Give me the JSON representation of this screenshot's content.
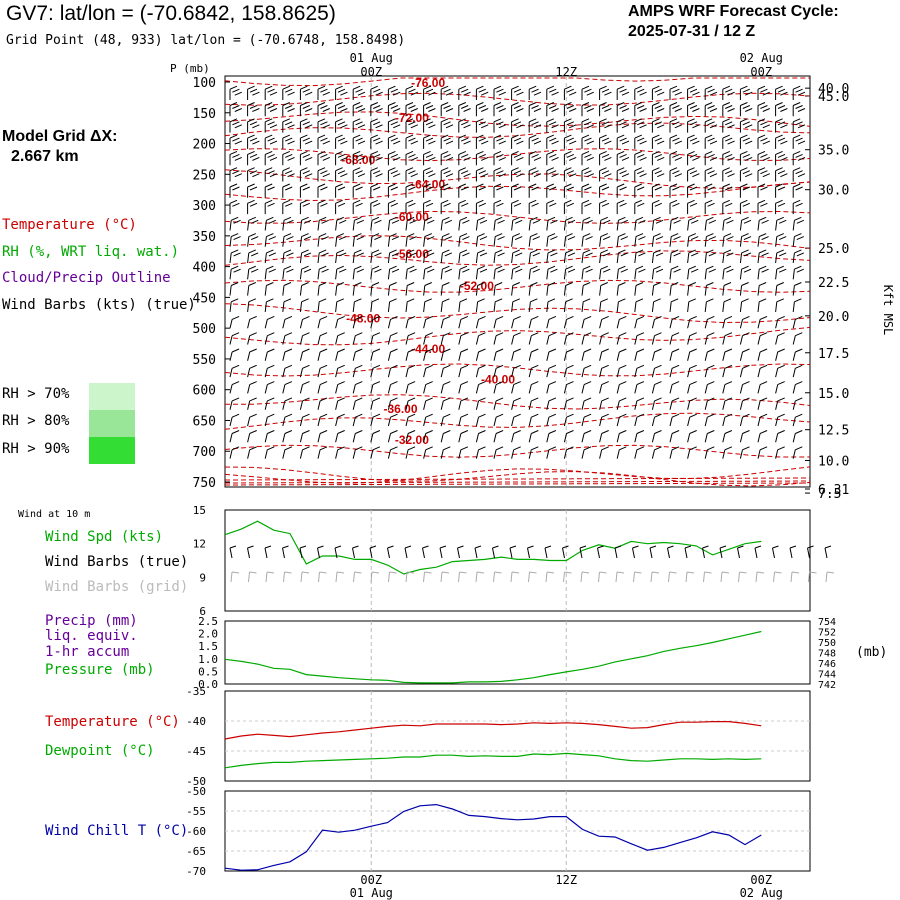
{
  "header": {
    "title": "GV7:  lat/lon = (-70.6842, 158.8625)",
    "grid_point": "Grid Point (48, 933) lat/lon = (-70.6748, 158.8498)",
    "cycle_title": "AMPS WRF Forecast Cycle:",
    "cycle_value": "2025-07-31 / 12  Z",
    "grid_dx_label": "Model Grid ΔX:",
    "grid_dx_value": "2.667 km"
  },
  "colors": {
    "temperature": "#cc0000",
    "rh": "#00aa00",
    "cloud": "#660099",
    "wind": "#000000",
    "wind_grid": "#aaaaaa",
    "precip": "#660099",
    "pressure": "#00aa00",
    "wind_chill": "#0000aa",
    "rh70": "#ccf5cc",
    "rh80": "#99e699",
    "rh90": "#33dd33"
  },
  "legends": {
    "temperature": "Temperature (°C)",
    "rh": "RH (%, WRT liq. wat.)",
    "cloud": "Cloud/Precip Outline",
    "wind": "Wind Barbs (kts) (true)",
    "rh70": "RH > 70%",
    "rh80": "RH > 80%",
    "rh90": "RH > 90%",
    "wind10": "Wind at 10 m",
    "wind_spd": "Wind Spd (kts)",
    "wind_true": "Wind Barbs (true)",
    "wind_grid": "Wind Barbs (grid)",
    "precip1": "Precip (mm)",
    "precip2": "liq. equiv.",
    "precip3": "1-hr accum",
    "pressure": "Pressure (mb)",
    "temp2": "Temperature (°C)",
    "dewpoint": "Dewpoint (°C)",
    "wind_chill": "Wind Chill T (°C)"
  },
  "chart_data": [
    {
      "type": "line",
      "name": "profile",
      "ylabel_left": "P (mb)",
      "ylabel_right": "Kft MSL",
      "p_ticks": [
        100,
        150,
        200,
        250,
        300,
        350,
        400,
        450,
        500,
        550,
        600,
        650,
        700,
        750
      ],
      "kft_ticks": [
        {
          "p": 100,
          "label": "45.0"
        },
        {
          "p": 110,
          "label": "40.0"
        },
        {
          "p": 210,
          "label": "35.0"
        },
        {
          "p": 275,
          "label": "30.0"
        },
        {
          "p": 370,
          "label": "25.0"
        },
        {
          "p": 425,
          "label": "22.5"
        },
        {
          "p": 480,
          "label": "20.0"
        },
        {
          "p": 540,
          "label": "17.5"
        },
        {
          "p": 605,
          "label": "15.0"
        },
        {
          "p": 665,
          "label": "12.5"
        },
        {
          "p": 715,
          "label": "10.0"
        },
        {
          "p": 768,
          "label": "7.5"
        },
        {
          "p": 790,
          "label": "6.31"
        }
      ],
      "top_ticks": [
        {
          "h": 12,
          "l1": "01 Aug",
          "l2": "00Z"
        },
        {
          "h": 24,
          "l1": "",
          "l2": "12Z"
        },
        {
          "h": 36,
          "l1": "02 Aug",
          "l2": "00Z"
        }
      ],
      "temp_labels": [
        {
          "h": 15.5,
          "p": 100,
          "label": "-76.00"
        },
        {
          "h": 14.5,
          "p": 157,
          "label": "-72.00"
        },
        {
          "h": 11.2,
          "p": 225,
          "label": "-68.00"
        },
        {
          "h": 15.5,
          "p": 265,
          "label": "-64.00"
        },
        {
          "h": 14.5,
          "p": 318,
          "label": "-60.00"
        },
        {
          "h": 14.5,
          "p": 378,
          "label": "-56.00"
        },
        {
          "h": 18.5,
          "p": 430,
          "label": "-52.00"
        },
        {
          "h": 11.5,
          "p": 483,
          "label": "-48.00"
        },
        {
          "h": 15.5,
          "p": 532,
          "label": "-44.00"
        },
        {
          "h": 19.8,
          "p": 582,
          "label": "-40.00"
        },
        {
          "h": 13.8,
          "p": 630,
          "label": "-36.00"
        },
        {
          "h": 14.5,
          "p": 680,
          "label": "-32.00"
        }
      ],
      "x_range": [
        3,
        39
      ],
      "y_range": [
        100,
        795
      ]
    },
    {
      "type": "line",
      "name": "wind10",
      "y_ticks": [
        6,
        9,
        12,
        15
      ],
      "ylim": [
        6,
        15
      ],
      "x": [
        3,
        4,
        5,
        6,
        7,
        8,
        9,
        10,
        11,
        12,
        13,
        14,
        15,
        16,
        17,
        18,
        19,
        20,
        21,
        22,
        23,
        24,
        25,
        26,
        27,
        28,
        29,
        30,
        31,
        32,
        33,
        34,
        35,
        36
      ],
      "values": [
        12.8,
        13.3,
        14.0,
        13.2,
        12.9,
        10.2,
        10.9,
        10.9,
        10.6,
        10.6,
        10.1,
        9.3,
        9.7,
        9.9,
        10.4,
        10.5,
        10.6,
        10.8,
        10.6,
        10.6,
        10.5,
        10.5,
        11.4,
        11.9,
        11.6,
        12.2,
        12.0,
        12.1,
        12.0,
        11.8,
        11.0,
        11.5,
        12.0,
        12.2
      ]
    },
    {
      "type": "line",
      "name": "precip_pressure",
      "y_ticks_left": [
        "0.0",
        "0.5",
        "1.0",
        "1.5",
        "2.0",
        "2.5"
      ],
      "y_ticks_right": [
        "742",
        "744",
        "746",
        "748",
        "750",
        "752",
        "754"
      ],
      "unit_right": "(mb)",
      "ylim_right": [
        742,
        754
      ],
      "x": [
        3,
        4,
        5,
        6,
        7,
        8,
        9,
        10,
        11,
        12,
        13,
        14,
        15,
        16,
        17,
        18,
        19,
        20,
        21,
        22,
        23,
        24,
        25,
        26,
        27,
        28,
        29,
        30,
        31,
        32,
        33,
        34,
        35,
        36
      ],
      "values": [
        746.7,
        746.3,
        745.8,
        745.0,
        744.8,
        743.8,
        743.5,
        743.2,
        743.0,
        742.8,
        742.7,
        742.3,
        742.2,
        742.2,
        742.2,
        742.4,
        742.4,
        742.5,
        742.8,
        743.2,
        743.8,
        744.3,
        744.8,
        745.4,
        746.2,
        746.8,
        747.4,
        748.2,
        748.8,
        749.3,
        749.9,
        750.6,
        751.3,
        752.0
      ]
    },
    {
      "type": "line",
      "name": "temp_dew",
      "y_ticks": [
        -50,
        -45,
        -40,
        -35
      ],
      "ylim": [
        -50,
        -35
      ],
      "x": [
        3,
        4,
        5,
        6,
        7,
        8,
        9,
        10,
        11,
        12,
        13,
        14,
        15,
        16,
        17,
        18,
        19,
        20,
        21,
        22,
        23,
        24,
        25,
        26,
        27,
        28,
        29,
        30,
        31,
        32,
        33,
        34,
        35,
        36
      ],
      "series": [
        {
          "name": "Temperature",
          "values": [
            -43.0,
            -42.5,
            -42.2,
            -42.4,
            -42.6,
            -42.3,
            -42.0,
            -41.8,
            -41.5,
            -41.2,
            -40.9,
            -40.7,
            -40.8,
            -40.5,
            -40.5,
            -40.5,
            -40.5,
            -40.6,
            -40.5,
            -40.3,
            -40.4,
            -40.3,
            -40.4,
            -40.6,
            -40.9,
            -41.2,
            -41.1,
            -40.6,
            -40.2,
            -40.2,
            -40.1,
            -40.1,
            -40.4,
            -40.8
          ]
        },
        {
          "name": "Dewpoint",
          "values": [
            -47.8,
            -47.4,
            -47.1,
            -46.9,
            -46.9,
            -46.7,
            -46.6,
            -46.5,
            -46.4,
            -46.3,
            -46.2,
            -46.0,
            -46.0,
            -45.7,
            -45.7,
            -45.9,
            -45.8,
            -45.9,
            -45.9,
            -45.5,
            -45.6,
            -45.4,
            -45.6,
            -45.8,
            -46.3,
            -46.6,
            -46.7,
            -46.5,
            -46.3,
            -46.3,
            -46.4,
            -46.3,
            -46.4,
            -46.3
          ]
        }
      ]
    },
    {
      "type": "line",
      "name": "wind_chill",
      "y_ticks": [
        -70,
        -65,
        -60,
        -55,
        -50
      ],
      "ylim": [
        -70,
        -50
      ],
      "x": [
        3,
        4,
        5,
        6,
        7,
        8,
        9,
        10,
        11,
        12,
        13,
        14,
        15,
        16,
        17,
        18,
        19,
        20,
        21,
        22,
        23,
        24,
        25,
        26,
        27,
        28,
        29,
        30,
        31,
        32,
        33,
        34,
        35,
        36
      ],
      "values": [
        -69.3,
        -69.8,
        -69.7,
        -68.6,
        -67.7,
        -65.2,
        -59.8,
        -60.3,
        -59.8,
        -58.8,
        -57.9,
        -55.1,
        -53.7,
        -53.4,
        -54.5,
        -56.1,
        -56.4,
        -56.9,
        -57.2,
        -57.0,
        -56.4,
        -56.4,
        -59.6,
        -61.3,
        -61.5,
        -63.2,
        -64.8,
        -64.1,
        -62.9,
        -61.7,
        -60.2,
        -61.0,
        -63.4,
        -61.0
      ]
    }
  ]
}
